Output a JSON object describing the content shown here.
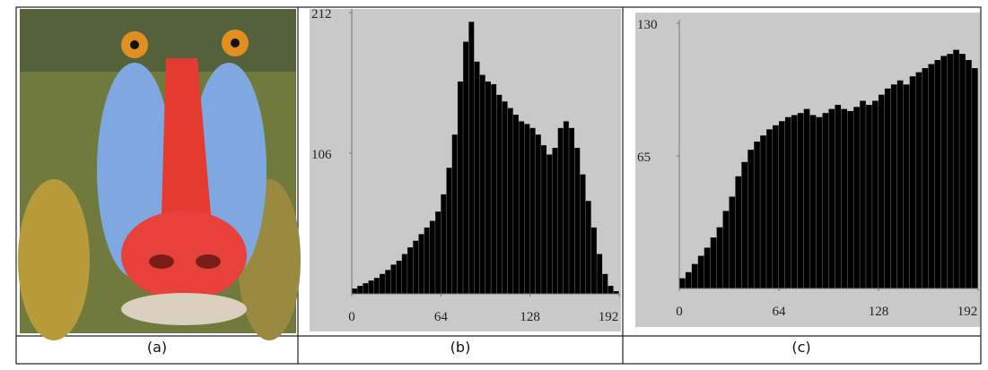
{
  "captions": [
    "(a)",
    "(b)",
    "(c)"
  ],
  "chart_data": [
    {
      "type": "histogram",
      "color": "#000000",
      "bins": [
        0,
        4,
        8,
        12,
        16,
        20,
        24,
        28,
        32,
        36,
        40,
        44,
        48,
        52,
        56,
        60,
        64,
        68,
        72,
        76,
        80,
        84,
        88,
        92,
        96,
        100,
        104,
        108,
        112,
        116,
        120,
        124,
        128,
        132,
        136,
        140,
        144,
        148,
        152,
        156,
        160,
        164,
        168,
        172,
        176,
        180,
        184,
        188,
        192
      ],
      "values": [
        4,
        6,
        8,
        10,
        12,
        15,
        18,
        22,
        25,
        30,
        35,
        40,
        45,
        50,
        55,
        62,
        75,
        95,
        120,
        160,
        190,
        205,
        175,
        165,
        160,
        158,
        150,
        145,
        140,
        135,
        130,
        128,
        125,
        120,
        112,
        105,
        110,
        125,
        130,
        125,
        110,
        90,
        70,
        50,
        30,
        15,
        6,
        2
      ],
      "xlim": [
        0,
        192
      ],
      "xticks": [
        0,
        64,
        128,
        192
      ],
      "ylim": [
        0,
        212
      ],
      "yticks": [
        106,
        212
      ]
    },
    {
      "type": "histogram",
      "color": "#000000",
      "bins": [
        0,
        4,
        8,
        12,
        16,
        20,
        24,
        28,
        32,
        36,
        40,
        44,
        48,
        52,
        56,
        60,
        64,
        68,
        72,
        76,
        80,
        84,
        88,
        92,
        96,
        100,
        104,
        108,
        112,
        116,
        120,
        124,
        128,
        132,
        136,
        140,
        144,
        148,
        152,
        156,
        160,
        164,
        168,
        172,
        176,
        180,
        184,
        188,
        192
      ],
      "values": [
        5,
        8,
        12,
        16,
        20,
        25,
        30,
        38,
        45,
        55,
        62,
        68,
        72,
        75,
        78,
        80,
        82,
        84,
        85,
        86,
        88,
        85,
        84,
        86,
        88,
        90,
        88,
        87,
        89,
        92,
        90,
        92,
        95,
        98,
        100,
        102,
        100,
        104,
        106,
        108,
        110,
        112,
        114,
        115,
        117,
        115,
        112,
        108
      ],
      "xlim": [
        0,
        192
      ],
      "xticks": [
        0,
        64,
        128,
        192
      ],
      "ylim": [
        0,
        130
      ],
      "yticks": [
        65,
        130
      ]
    }
  ]
}
